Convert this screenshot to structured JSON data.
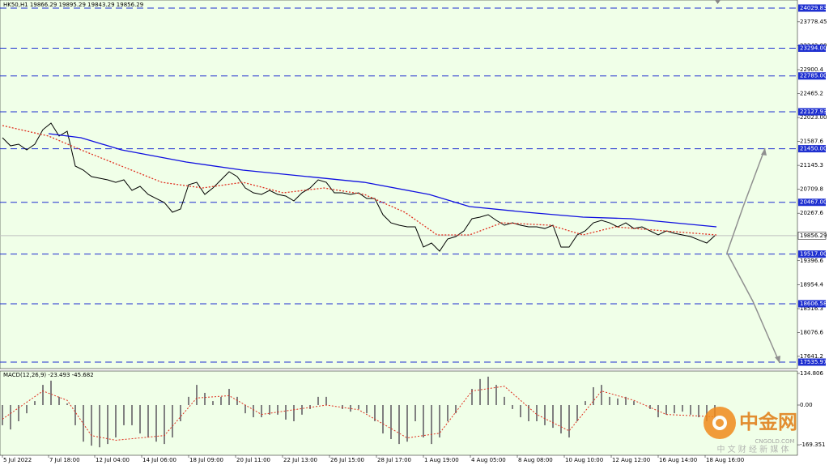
{
  "chart_data": [
    {
      "type": "line",
      "title": "HK50,H1 19866.29 19895.29 19843.29 19856.29",
      "x": [
        0,
        1,
        2,
        3,
        4,
        5,
        6,
        7,
        8,
        9,
        10,
        11,
        12,
        13,
        14,
        15,
        16,
        17,
        18,
        19,
        20,
        21,
        22,
        23,
        24,
        25,
        26,
        27,
        28,
        29,
        30,
        31,
        32,
        33,
        34,
        35,
        36,
        37,
        38,
        39,
        40,
        41,
        42,
        43,
        44,
        45,
        46,
        47,
        48,
        49,
        50,
        51,
        52,
        53,
        54,
        55,
        56,
        57,
        58,
        59,
        60,
        61,
        62,
        63,
        64,
        65,
        66,
        67,
        68,
        69,
        70,
        71,
        72,
        73,
        74,
        75,
        76,
        77,
        78,
        79,
        80,
        81,
        82,
        83,
        84,
        85,
        86,
        87,
        88
      ],
      "xlim": [
        -0.3,
        98.2
      ],
      "xticks": [
        {
          "value": 0,
          "label": "5 Jul 2022"
        },
        {
          "value": 5.7,
          "label": "7 Jul 18:00"
        },
        {
          "value": 11.4,
          "label": "12 Jul 04:00"
        },
        {
          "value": 17.2,
          "label": "14 Jul 06:00"
        },
        {
          "value": 23,
          "label": "18 Jul 09:00"
        },
        {
          "value": 28.8,
          "label": "20 Jul 11:00"
        },
        {
          "value": 34.6,
          "label": "22 Jul 13:00"
        },
        {
          "value": 40.4,
          "label": "26 Jul 15:00"
        },
        {
          "value": 46.2,
          "label": "28 Jul 17:00"
        },
        {
          "value": 52,
          "label": "1 Aug 19:00"
        },
        {
          "value": 57.8,
          "label": "4 Aug 05:00"
        },
        {
          "value": 63.6,
          "label": "8 Aug 08:00"
        },
        {
          "value": 69.4,
          "label": "10 Aug 10:00"
        },
        {
          "value": 75.2,
          "label": "12 Aug 12:00"
        },
        {
          "value": 81,
          "label": "16 Aug 14:00"
        },
        {
          "value": 86.8,
          "label": "18 Aug 16:00"
        }
      ],
      "ylim": [
        17417,
        24178
      ],
      "yticks": [
        23778.45,
        {
          "value": 23342,
          "label": "23342.00"
        },
        22900.4,
        22465.2,
        {
          "value": 22023,
          "label": "22023.00"
        },
        21587.6,
        21145.3,
        20709.8,
        20267.6,
        19396.6,
        18954.4,
        18516.3,
        18076.6,
        17641.2
      ],
      "levels": [
        24029.83,
        {
          "value": 23294,
          "label": "23294.00"
        },
        {
          "value": 22785,
          "label": "22785.00"
        },
        22127.93,
        {
          "value": 21450,
          "label": "21450.00"
        },
        {
          "value": 20467,
          "label": "20467.00"
        },
        {
          "value": 19517,
          "label": "19517.00"
        },
        18606.58,
        17535.97
      ],
      "level_color": "#1e2fd0",
      "current": 19856.29,
      "series": [
        {
          "color": "#000000",
          "values": [
            21652,
            21503,
            21533,
            21429,
            21533,
            21800,
            21919,
            21682,
            21771,
            21132,
            21057,
            20939,
            20909,
            20879,
            20834,
            20879,
            20686,
            20760,
            20612,
            20537,
            20463,
            20285,
            20344,
            20790,
            20834,
            20612,
            20730,
            20879,
            21028,
            20939,
            20730,
            20641,
            20612,
            20686,
            20612,
            20582,
            20493,
            20641,
            20730,
            20879,
            20834,
            20641,
            20641,
            20612,
            20641,
            20537,
            20537,
            20240,
            20091,
            20047,
            20017,
            20017,
            19646,
            19720,
            19571,
            19794,
            19839,
            19943,
            20166,
            20196,
            20240,
            20136,
            20047,
            20091,
            20047,
            20017,
            20017,
            19987,
            20047,
            19646,
            19646,
            19869,
            19943,
            20091,
            20136,
            20091,
            20017,
            20091,
            19987,
            20017,
            19943,
            19869,
            19943,
            19898,
            19869,
            19839,
            19779,
            19720,
            19856
          ]
        },
        {
          "color": "#1010e0",
          "x": [
            5.7,
            9.7,
            14.7,
            22.7,
            29.7,
            37.7,
            44.7,
            52.7,
            57.7,
            64.7,
            71.7,
            77.7,
            88.2
          ],
          "values": [
            21726,
            21652,
            21429,
            21206,
            21057,
            20939,
            20834,
            20612,
            20389,
            20285,
            20196,
            20166,
            20017
          ]
        },
        {
          "color": "#e03020",
          "dash": true,
          "x": [
            0,
            5.7,
            9.7,
            14.7,
            19.7,
            24.7,
            29.7,
            34.7,
            39.7,
            44.7,
            49.7,
            53.7,
            57.7,
            61.7,
            67.7,
            71.7,
            75.7,
            81.7,
            88.2
          ],
          "values": [
            21875,
            21682,
            21429,
            21132,
            20834,
            20730,
            20834,
            20641,
            20730,
            20612,
            20285,
            19869,
            19869,
            20091,
            20047,
            19869,
            20017,
            19943,
            19869
          ]
        }
      ]
    },
    {
      "type": "bar",
      "title": "MACD(12,26,9) -23.493 -45.682",
      "xlim": [
        -0.3,
        98.2
      ],
      "ylim": [
        -214,
        145
      ],
      "yticks": [
        134.806,
        {
          "value": 0,
          "label": "0.00"
        },
        -169.351
      ],
      "color": "#808080",
      "values": [
        -86,
        -104,
        -69,
        -35,
        17,
        86,
        104,
        35,
        7,
        -86,
        -156,
        -173,
        -180,
        -166,
        -138,
        -86,
        -86,
        -121,
        -138,
        -156,
        -166,
        -138,
        -69,
        35,
        86,
        52,
        17,
        35,
        69,
        35,
        -35,
        -52,
        -52,
        -41,
        -41,
        -62,
        -69,
        -41,
        -17,
        35,
        35,
        0,
        -17,
        -28,
        -17,
        -35,
        -69,
        -121,
        -145,
        -166,
        -156,
        -69,
        -138,
        -166,
        -138,
        -69,
        -35,
        0,
        69,
        111,
        121,
        86,
        35,
        -17,
        -52,
        -69,
        -69,
        -86,
        -97,
        -121,
        -138,
        -69,
        17,
        76,
        86,
        35,
        28,
        35,
        17,
        0,
        -17,
        -52,
        -41,
        -35,
        -28,
        -41,
        -52,
        -69,
        -62
      ],
      "signal": {
        "color": "#e03020",
        "x": [
          0,
          5,
          8,
          11,
          14,
          20,
          24,
          28,
          32,
          40,
          44,
          50,
          54,
          58,
          62,
          66,
          70,
          74,
          78,
          82,
          88
        ],
        "values": [
          -60,
          60,
          20,
          -130,
          -150,
          -130,
          30,
          40,
          -40,
          0,
          -20,
          -140,
          -120,
          60,
          80,
          -40,
          -110,
          60,
          20,
          -40,
          -50
        ]
      }
    }
  ],
  "watermark": {
    "logo": "中金网",
    "site": "CNGOLD.COM",
    "slogan": "中 文 财 经 新 媒 体"
  }
}
